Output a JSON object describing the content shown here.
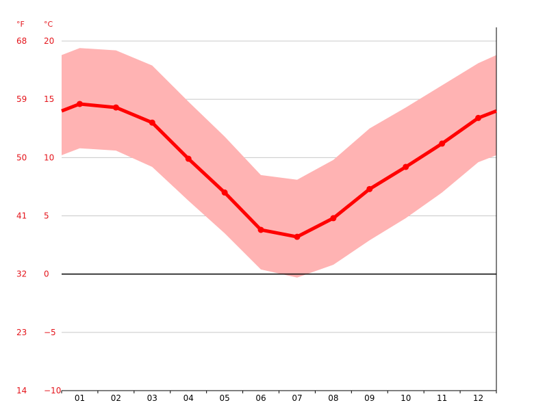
{
  "chart_data": {
    "type": "line",
    "title": "",
    "xlabel": "",
    "ylabel": "",
    "unit_left": "°F",
    "unit_right": "°C",
    "categories": [
      "01",
      "02",
      "03",
      "04",
      "05",
      "06",
      "07",
      "08",
      "09",
      "10",
      "11",
      "12"
    ],
    "series": [
      {
        "values": [
          14.6,
          14.3,
          13.0,
          9.9,
          7.0,
          3.8,
          3.2,
          4.8,
          7.3,
          9.2,
          11.2,
          13.4
        ]
      }
    ],
    "band_upper": [
      19.4,
      19.2,
      17.9,
      14.8,
      11.8,
      8.5,
      8.1,
      9.8,
      12.5,
      14.3,
      16.2,
      18.1
    ],
    "band_lower": [
      10.8,
      10.6,
      9.2,
      6.3,
      3.5,
      0.4,
      -0.3,
      0.8,
      2.9,
      4.8,
      7.0,
      9.6
    ],
    "edge_values": {
      "start": 14.0,
      "end": 14.0,
      "band_upper_start": 18.8,
      "band_upper_end": 18.8,
      "band_lower_start": 10.2,
      "band_lower_end": 10.2
    },
    "ylim": [
      -10,
      20
    ],
    "yticks_c": [
      "20",
      "15",
      "10",
      "5",
      "0",
      "−5",
      "−10"
    ],
    "yticks_f": [
      "68",
      "59",
      "50",
      "41",
      "32",
      "23",
      "14"
    ],
    "ytick_values": [
      20,
      15,
      10,
      5,
      0,
      -5,
      -10
    ],
    "grid": true,
    "legend": "none",
    "colors": {
      "line": "#ff0000",
      "band": "#ffb3b3",
      "grid": "#c8c8c8",
      "tick_text": "#e4141b",
      "zero_line": "#000000"
    }
  }
}
